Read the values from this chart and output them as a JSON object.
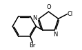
{
  "bg_color": "#ffffff",
  "line_color": "#000000",
  "line_width": 1.1,
  "font_size": 6.0,
  "figsize": [
    1.19,
    0.73
  ],
  "dpi": 100,
  "atoms": {
    "Br_label": "Br",
    "Cl_label": "Cl",
    "N_label": "N",
    "O_label": "O"
  }
}
